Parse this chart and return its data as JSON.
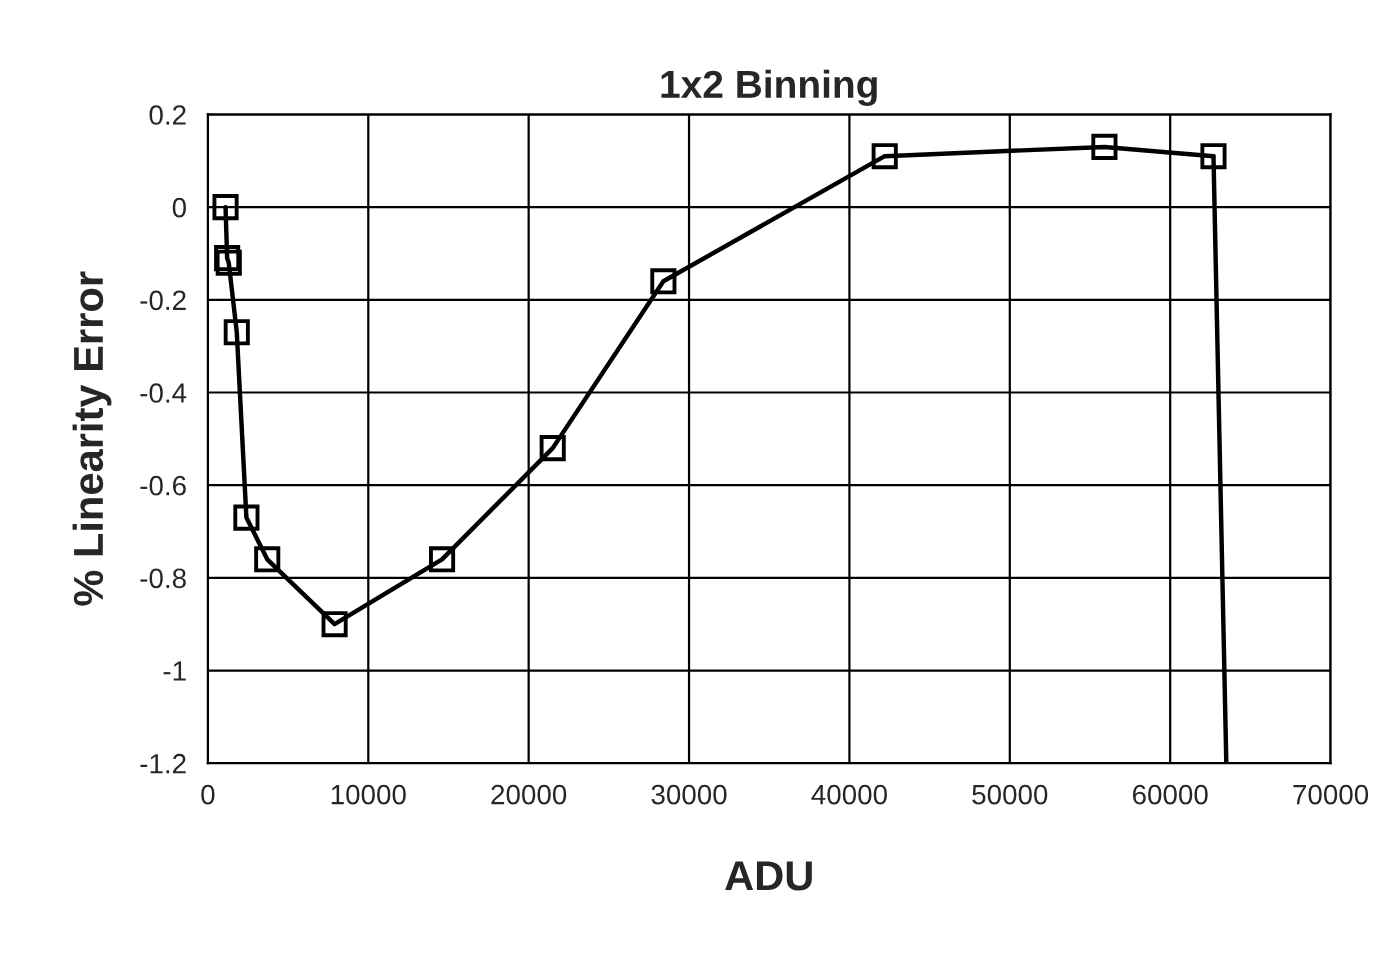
{
  "chart_data": {
    "type": "line",
    "title": "1x2 Binning",
    "xlabel": "ADU",
    "ylabel": "% Linearity Error",
    "series": [
      {
        "color": "#000000",
        "marker": "square",
        "x": [
          1100,
          1200,
          1300,
          1800,
          2400,
          3700,
          7900,
          14600,
          21500,
          28400,
          42200,
          55900,
          62700
        ],
        "values": [
          0,
          -0.11,
          -0.12,
          -0.27,
          -0.67,
          -0.76,
          -0.9,
          -0.76,
          -0.52,
          -0.16,
          0.11,
          0.13,
          0.11
        ]
      },
      {
        "color": "#000000",
        "marker": "none",
        "x": [
          62700,
          63500
        ],
        "values": [
          0.11,
          -1.2
        ]
      }
    ],
    "xlim": [
      0,
      70000
    ],
    "xticks": [
      0,
      10000,
      20000,
      30000,
      40000,
      50000,
      60000,
      70000
    ],
    "ylim": [
      -1.2,
      0.2
    ],
    "yticks": [
      -1.2,
      -1,
      -0.8,
      -0.6,
      -0.4,
      -0.2,
      0,
      0.2
    ],
    "grid": true,
    "line_style": "solid"
  }
}
